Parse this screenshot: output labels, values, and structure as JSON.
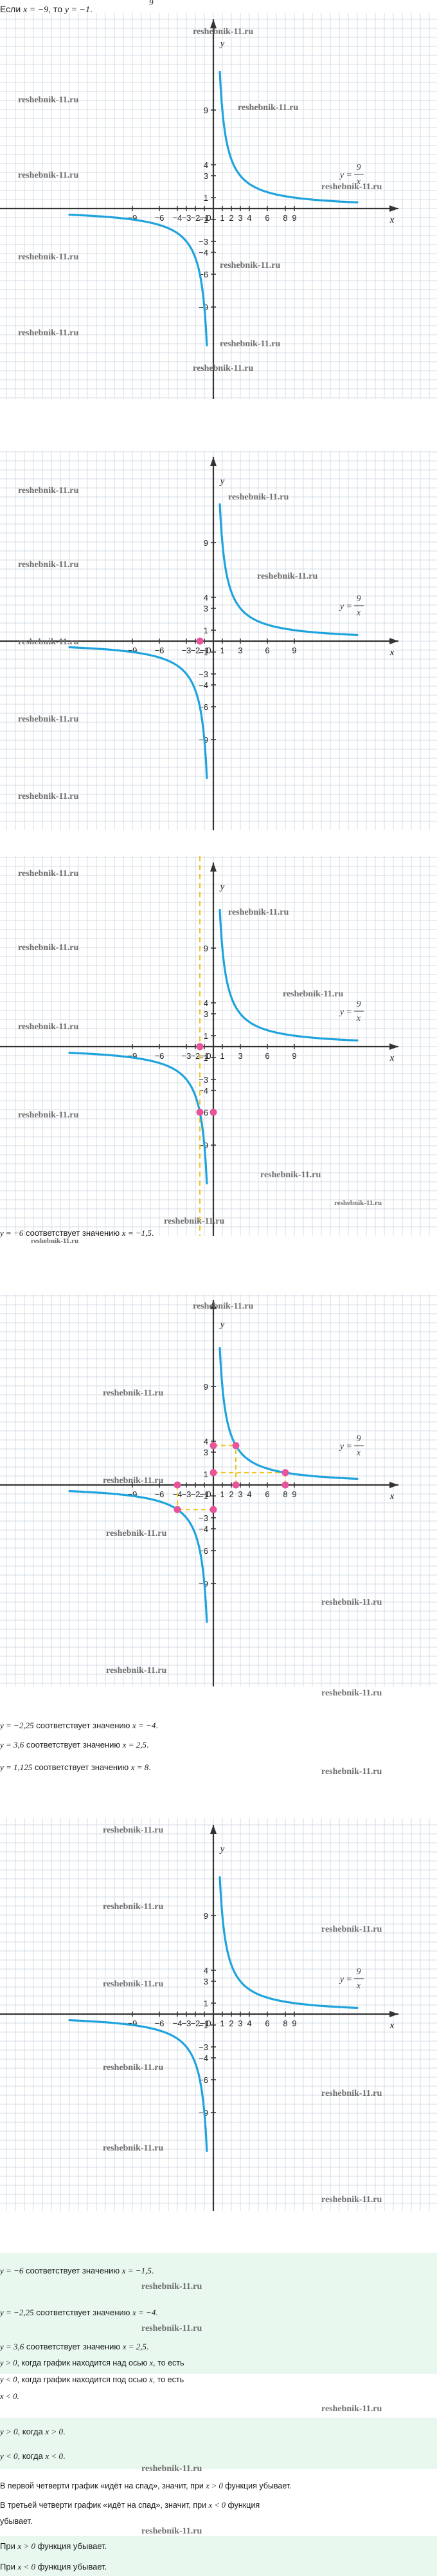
{
  "intro": {
    "pre": "Если ",
    "math1": "x = −9",
    "mid": ", то ",
    "math2": "y = −1",
    "numerator": "9",
    "post": "."
  },
  "watermark": "reshebnik-11.ru",
  "watermark_small": "reshebnik-11.ru",
  "graph": {
    "x_label": "x",
    "y_label": "y",
    "function_y": "y =",
    "function_num": "9",
    "function_den": "x",
    "y_ticks": [
      "9",
      "4",
      "3",
      "1",
      "−1",
      "−3",
      "−4",
      "−6",
      "−9"
    ],
    "curve_color": "#1fa3dc",
    "marker_color": "#e8549b",
    "guide_color": "#f0c419"
  },
  "x_ticks": {
    "g1": [
      "−9",
      "−6",
      "−4",
      "−3",
      "−2",
      "−1",
      "0",
      "1",
      "2",
      "3",
      "4",
      "6",
      "8",
      "9"
    ],
    "g2": [
      "−9",
      "−6",
      "−3",
      "−2",
      "−1",
      "0",
      "1",
      "3",
      "6",
      "9"
    ],
    "g3": [
      "−9",
      "−6",
      "−3",
      "−2",
      "−1",
      "0",
      "1",
      "3",
      "6",
      "9"
    ],
    "g4": [
      "−9",
      "−6",
      "−4",
      "−3",
      "−2",
      "−1",
      "0",
      "1",
      "2",
      "3",
      "4",
      "6",
      "8",
      "9"
    ],
    "g5": [
      "−9",
      "−6",
      "−4",
      "−3",
      "−2",
      "−1",
      "0",
      "1",
      "2",
      "3",
      "4",
      "6",
      "8",
      "9"
    ]
  },
  "captions": {
    "after_g3": {
      "pre": "",
      "math1": "y = −6",
      "mid": " соответствует значению ",
      "math2": "x = −1,5",
      "post": "."
    },
    "r1": {
      "math1": "y = −2,25",
      "mid": " соответствует значению ",
      "math2": "x = −4",
      "post": "."
    },
    "r2": {
      "math1": "y = 3,6",
      "mid": " соответствует значению ",
      "math2": "x = 2,5",
      "post": "."
    },
    "r3": {
      "math1": "y = 1,125",
      "mid": " соответствует значению ",
      "math2": "x = 8",
      "post": "."
    }
  },
  "summary": {
    "s1": {
      "math1": "y = −6",
      "mid": " соответствует значению ",
      "math2": "x = −1,5",
      "post": "."
    },
    "s2": {
      "math1": "y = −2,25",
      "mid": " соответствует значению ",
      "math2": "x = −4",
      "post": "."
    },
    "s3": {
      "math1": "y = 3,6",
      "mid": " соответствует значению ",
      "math2": "x = 2,5",
      "post": "."
    },
    "p1_a": "y > 0",
    "p1_b": ", когда график находится над осью ",
    "p1_c": "x",
    "p1_d": ", то есть",
    "p2_a": "y < 0",
    "p2_b": ", когда график находится под осью ",
    "p2_c": "x",
    "p2_d": ", то есть",
    "p3": "x < 0.",
    "h1_a": "y > 0",
    "h1_b": ", когда ",
    "h1_c": "x > 0",
    "h1_d": ".",
    "h2_a": "y < 0",
    "h2_b": ", когда ",
    "h2_c": "x < 0",
    "h2_d": ".",
    "q1_a": "В первой четверти график «идёт на спад», значит, при ",
    "q1_b": "x > 0",
    "q1_c": " функция убывает.",
    "q2_a": "В третьей четверти график «идёт на спад», значит, при ",
    "q2_b": "x < 0",
    "q2_c": " функция",
    "q2_d": "убывает.",
    "c1_a": "При ",
    "c1_b": "x > 0",
    "c1_c": " функция убывает.",
    "c2_a": "При ",
    "c2_b": "x < 0",
    "c2_c": " функция убывает."
  }
}
